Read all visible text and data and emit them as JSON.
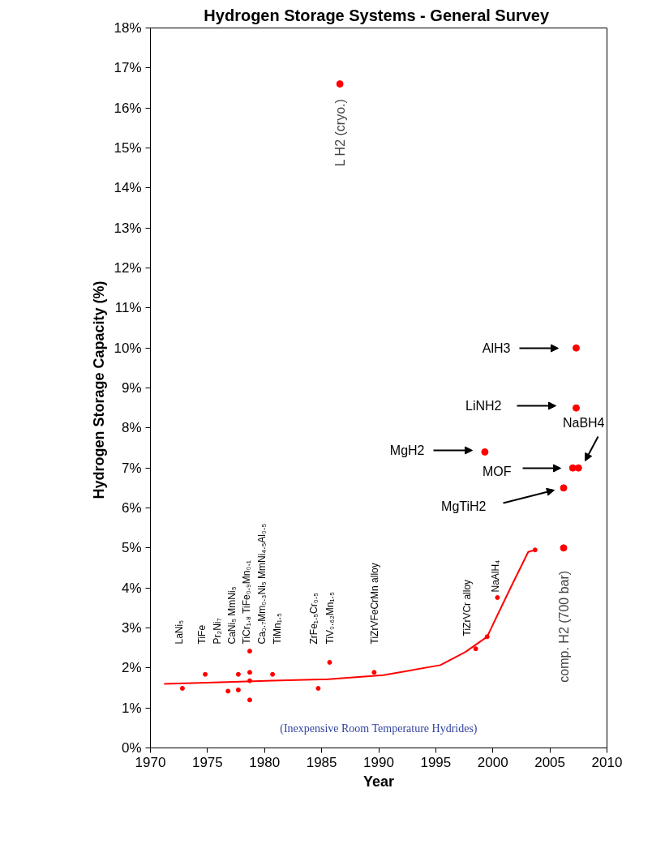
{
  "chart_data": {
    "type": "scatter",
    "title": "Hydrogen  Storage Systems - General Survey",
    "xlabel": "Year",
    "ylabel": "Hydrogen  Storage Capacity (%)",
    "xlim": [
      1970,
      2010
    ],
    "xticks": [
      1970,
      1975,
      1980,
      1985,
      1990,
      1995,
      2000,
      2005,
      2010
    ],
    "ylim": [
      0,
      18
    ],
    "yticks": [
      {
        "value": 0,
        "label": "0%"
      },
      {
        "value": 1,
        "label": "1%"
      },
      {
        "value": 2,
        "label": "2%"
      },
      {
        "value": 3,
        "label": "3%"
      },
      {
        "value": 4,
        "label": "4%"
      },
      {
        "value": 5,
        "label": "5%"
      },
      {
        "value": 6,
        "label": "6%"
      },
      {
        "value": 7,
        "label": "7%"
      },
      {
        "value": 8,
        "label": "8%"
      },
      {
        "value": 9,
        "label": "9%"
      },
      {
        "value": 10,
        "label": "10%"
      },
      {
        "value": 11,
        "label": "11%"
      },
      {
        "value": 12,
        "label": "12%"
      },
      {
        "value": 13,
        "label": "13%"
      },
      {
        "value": 14,
        "label": "14%"
      },
      {
        "value": 15,
        "label": "15%"
      },
      {
        "value": 16,
        "label": "16%"
      },
      {
        "value": 17,
        "label": "17%"
      },
      {
        "value": 18,
        "label": "18%"
      }
    ],
    "grid": false,
    "marker": "circle",
    "series": [
      {
        "color": "#ff0000",
        "x": [
          1986.6,
          2007.3,
          2007.3,
          1999.3,
          2007.0,
          2007.5,
          2006.2,
          2006.2
        ],
        "values": [
          16.6,
          10.0,
          8.5,
          7.4,
          7.0,
          7.0,
          6.5,
          5.0
        ]
      },
      {
        "color": "#ff0000",
        "x": [
          1972.8,
          1974.8,
          1976.8,
          1977.7,
          1977.7,
          1978.7,
          1978.7,
          1978.7,
          1978.7,
          1980.7,
          1984.7,
          1985.7,
          1989.6,
          1998.5,
          1999.5,
          2000.4,
          2003.7
        ],
        "values": [
          1.49,
          1.84,
          1.42,
          1.84,
          1.45,
          2.42,
          1.89,
          1.68,
          1.2,
          1.84,
          1.49,
          2.14,
          1.89,
          2.48,
          2.78,
          3.76,
          4.95
        ]
      },
      {
        "type": "line",
        "marker": "none",
        "color": "#ff0000",
        "x": [
          1971.2,
          1975.0,
          1980.7,
          1985.6,
          1990.4,
          1995.4,
          1997.6,
          1999.5,
          2000.5,
          2001.7,
          2003.1,
          2003.7
        ],
        "values": [
          1.6,
          1.63,
          1.68,
          1.72,
          1.82,
          2.07,
          2.4,
          2.78,
          3.38,
          4.09,
          4.9,
          4.95
        ]
      }
    ],
    "annotations": [
      {
        "text": "L H2 (cryo.)",
        "x": 1986.6,
        "y": 16.6
      },
      "AlH3",
      "LiNH2",
      "MgH2",
      "MOF",
      "NaBH4",
      "MgTiH2",
      {
        "text": "comp. H2 (700 bar)",
        "x": 2006.2,
        "y": 5.0
      },
      "LaNi₅",
      "TiFe",
      "Pr₂Ni₇",
      "CaNi₅  MmNi₅",
      "TiCr₁.₈  TiFe₀.₉Mn₀.₁",
      "Ca₀.₇Mm₀.₃Ni₅  MmNi₄.₅Al₀.₅",
      "TiMn₁.₅",
      "ZrFe₁.₅Cr₀.₅",
      "TiV₀.₆₂Mn₁.₅",
      "TiZrVFeCrMn alloy",
      "TiZrVCr alloy",
      "NaAlH₄",
      "(Inexpensive Room Temperature Hydrides)"
    ]
  }
}
